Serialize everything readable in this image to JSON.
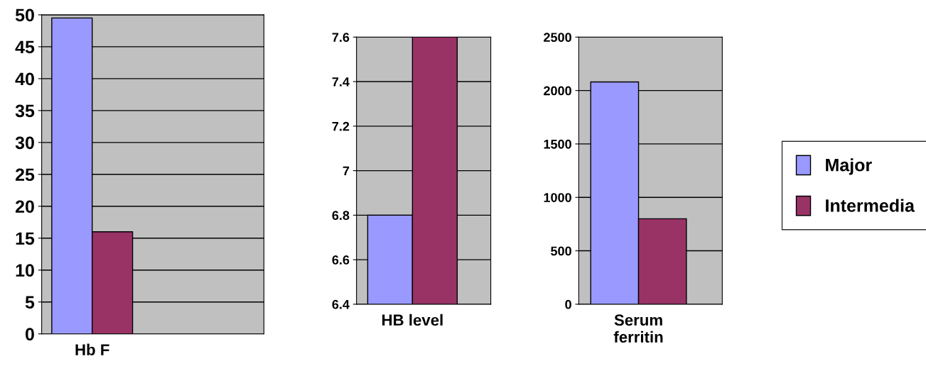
{
  "chart_data": [
    {
      "type": "bar",
      "categories": [
        "Hb F"
      ],
      "series": [
        {
          "color": "#9999ff",
          "values": [
            49.5
          ]
        },
        {
          "color": "#993366",
          "values": [
            16
          ]
        }
      ],
      "ylim": [
        0,
        50
      ],
      "yticks": [
        0,
        5,
        10,
        15,
        20,
        25,
        30,
        35,
        40,
        45,
        50
      ],
      "grid": "y",
      "legend": false
    },
    {
      "type": "bar",
      "categories": [
        "HB level"
      ],
      "series": [
        {
          "color": "#9999ff",
          "values": [
            6.8
          ]
        },
        {
          "color": "#993366",
          "values": [
            7.6
          ]
        }
      ],
      "ylim": [
        6.4,
        7.6
      ],
      "yticks": [
        6.4,
        6.6,
        6.8,
        7,
        7.2,
        7.4,
        7.6
      ],
      "grid": "y",
      "legend": false
    },
    {
      "type": "bar",
      "categories": [
        "Serum\nferritin"
      ],
      "series": [
        {
          "name": "Major",
          "color": "#9999ff",
          "values": [
            2080
          ]
        },
        {
          "name": "Intermedia",
          "color": "#993366",
          "values": [
            800
          ]
        }
      ],
      "ylim": [
        0,
        2500
      ],
      "yticks": [
        0,
        500,
        1000,
        1500,
        2000,
        2500
      ],
      "grid": "y",
      "legend": "right"
    }
  ]
}
